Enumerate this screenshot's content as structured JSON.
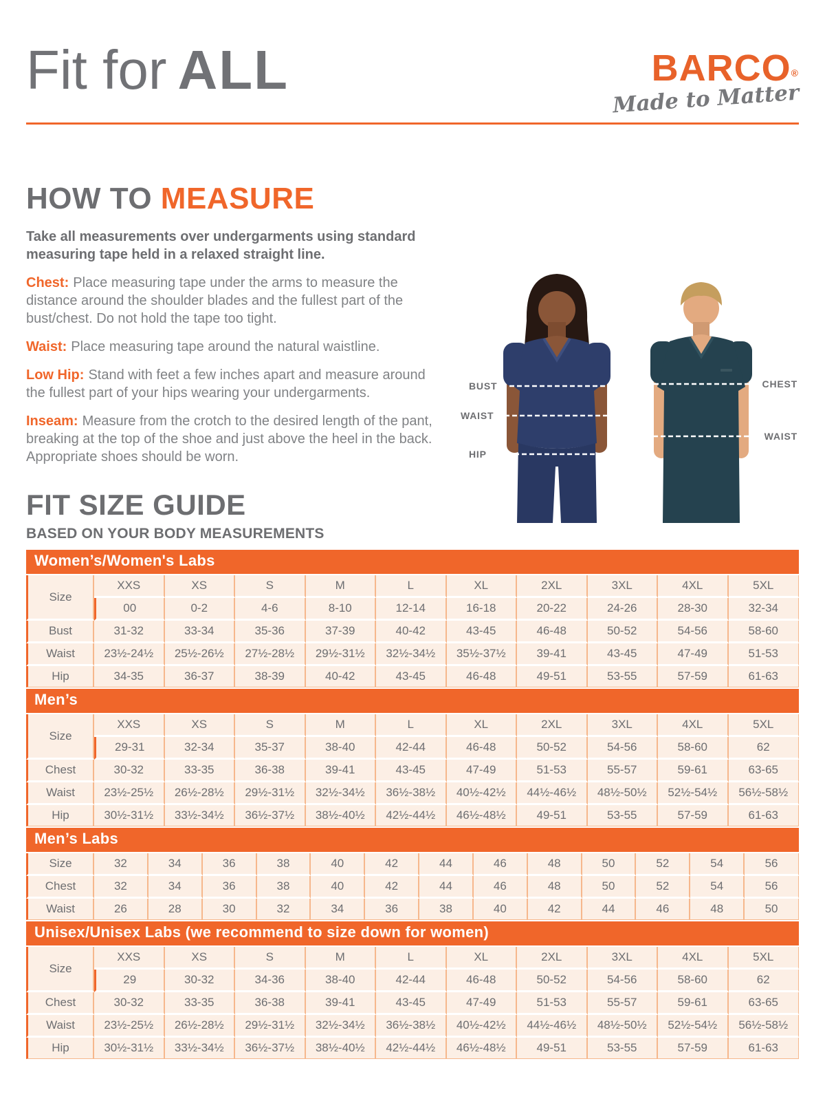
{
  "header": {
    "title_regular": "Fit for",
    "title_bold": "ALL",
    "logo": {
      "brand": "BARCO",
      "registered": "®",
      "tagline": "Made to Matter"
    }
  },
  "how_to_measure": {
    "heading_gray": "HOW TO",
    "heading_orange": "MEASURE",
    "intro": "Take all measurements over undergarments using standard measuring tape held in a relaxed straight line.",
    "items": [
      {
        "label": "Chest:",
        "text": "Place measuring tape under the arms to measure the distance around the shoulder blades and the fullest part of the bust/chest. Do not hold the tape too tight."
      },
      {
        "label": "Waist:",
        "text": "Place measuring tape around the natural waistline."
      },
      {
        "label": "Low Hip:",
        "text": "Stand with feet a few inches apart and measure around the fullest part of your hips wearing your undergarments."
      },
      {
        "label": "Inseam:",
        "text": "Measure from the crotch to the desired length of the pant, breaking at the top of the shoe and just above the heel in the back. Appropriate shoes should be worn."
      }
    ]
  },
  "figure_labels": {
    "left": [
      "BUST",
      "WAIST",
      "HIP"
    ],
    "right": [
      "CHEST",
      "WAIST"
    ]
  },
  "size_guide": {
    "heading": "FIT SIZE GUIDE",
    "subheading": "BASED ON YOUR BODY MEASUREMENTS",
    "row_header": "Size",
    "tables": [
      {
        "title": "Women’s/Women's Labs",
        "size_row": [
          "XXS",
          "XS",
          "S",
          "M",
          "L",
          "XL",
          "2XL",
          "3XL",
          "4XL",
          "5XL"
        ],
        "numeric_row": [
          "00",
          "0-2",
          "4-6",
          "8-10",
          "12-14",
          "16-18",
          "20-22",
          "24-26",
          "28-30",
          "32-34"
        ],
        "rows": [
          {
            "label": "Bust",
            "values": [
              "31-32",
              "33-34",
              "35-36",
              "37-39",
              "40-42",
              "43-45",
              "46-48",
              "50-52",
              "54-56",
              "58-60"
            ]
          },
          {
            "label": "Waist",
            "values": [
              "23½-24½",
              "25½-26½",
              "27½-28½",
              "29½-31½",
              "32½-34½",
              "35½-37½",
              "39-41",
              "43-45",
              "47-49",
              "51-53"
            ]
          },
          {
            "label": "Hip",
            "values": [
              "34-35",
              "36-37",
              "38-39",
              "40-42",
              "43-45",
              "46-48",
              "49-51",
              "53-55",
              "57-59",
              "61-63"
            ]
          }
        ]
      },
      {
        "title": "Men’s",
        "size_row": [
          "XXS",
          "XS",
          "S",
          "M",
          "L",
          "XL",
          "2XL",
          "3XL",
          "4XL",
          "5XL"
        ],
        "numeric_row": [
          "29-31",
          "32-34",
          "35-37",
          "38-40",
          "42-44",
          "46-48",
          "50-52",
          "54-56",
          "58-60",
          "62"
        ],
        "rows": [
          {
            "label": "Chest",
            "values": [
              "30-32",
              "33-35",
              "36-38",
              "39-41",
              "43-45",
              "47-49",
              "51-53",
              "55-57",
              "59-61",
              "63-65"
            ]
          },
          {
            "label": "Waist",
            "values": [
              "23½-25½",
              "26½-28½",
              "29½-31½",
              "32½-34½",
              "36½-38½",
              "40½-42½",
              "44½-46½",
              "48½-50½",
              "52½-54½",
              "56½-58½"
            ]
          },
          {
            "label": "Hip",
            "values": [
              "30½-31½",
              "33½-34½",
              "36½-37½",
              "38½-40½",
              "42½-44½",
              "46½-48½",
              "49-51",
              "53-55",
              "57-59",
              "61-63"
            ]
          }
        ]
      },
      {
        "title": "Men’s Labs",
        "size_row": [
          "32",
          "34",
          "36",
          "38",
          "40",
          "42",
          "44",
          "46",
          "48",
          "50",
          "52",
          "54",
          "56"
        ],
        "numeric_row": null,
        "rows": [
          {
            "label": "Chest",
            "values": [
              "32",
              "34",
              "36",
              "38",
              "40",
              "42",
              "44",
              "46",
              "48",
              "50",
              "52",
              "54",
              "56"
            ]
          },
          {
            "label": "Waist",
            "values": [
              "26",
              "28",
              "30",
              "32",
              "34",
              "36",
              "38",
              "40",
              "42",
              "44",
              "46",
              "48",
              "50"
            ]
          }
        ]
      },
      {
        "title": "Unisex/Unisex Labs (we recommend to size down for women)",
        "size_row": [
          "XXS",
          "XS",
          "S",
          "M",
          "L",
          "XL",
          "2XL",
          "3XL",
          "4XL",
          "5XL"
        ],
        "numeric_row": [
          "29",
          "30-32",
          "34-36",
          "38-40",
          "42-44",
          "46-48",
          "50-52",
          "54-56",
          "58-60",
          "62"
        ],
        "rows": [
          {
            "label": "Chest",
            "values": [
              "30-32",
              "33-35",
              "36-38",
              "39-41",
              "43-45",
              "47-49",
              "51-53",
              "55-57",
              "59-61",
              "63-65"
            ]
          },
          {
            "label": "Waist",
            "values": [
              "23½-25½",
              "26½-28½",
              "29½-31½",
              "32½-34½",
              "36½-38½",
              "40½-42½",
              "44½-46½",
              "48½-50½",
              "52½-54½",
              "56½-58½"
            ]
          },
          {
            "label": "Hip",
            "values": [
              "30½-31½",
              "33½-34½",
              "36½-37½",
              "38½-40½",
              "42½-44½",
              "46½-48½",
              "49-51",
              "53-55",
              "57-59",
              "61-63"
            ]
          }
        ]
      }
    ]
  },
  "colors": {
    "accent_orange": "#F0662A",
    "brand_orange": "#E8622A",
    "text_gray": "#6D6E71",
    "table_header_bg": "#F9D6BA",
    "table_row_bg": "#FCEFE5",
    "womens_scrub": "#2E3E6B",
    "mens_scrub": "#25424F"
  }
}
